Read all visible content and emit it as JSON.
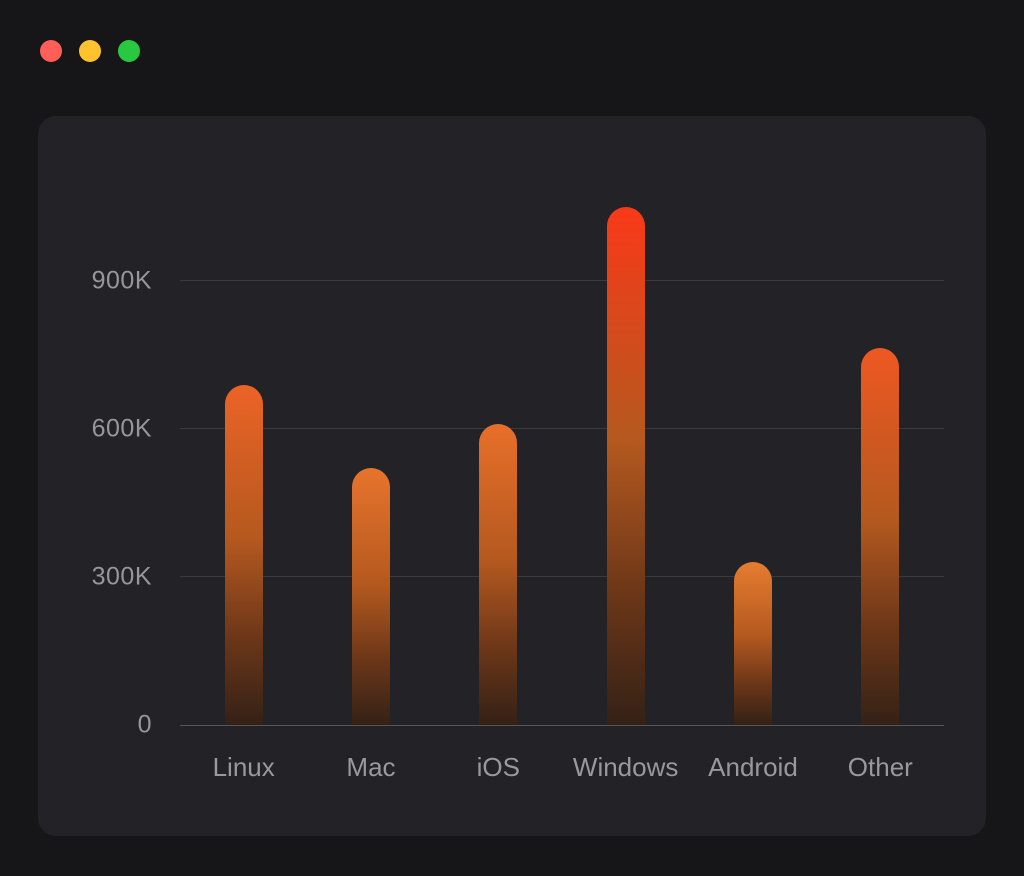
{
  "window": {
    "traffic_lights": [
      {
        "name": "close",
        "color": "#ff5f57"
      },
      {
        "name": "minimize",
        "color": "#fdc22e"
      },
      {
        "name": "zoom",
        "color": "#28c840"
      }
    ]
  },
  "chart_data": {
    "type": "bar",
    "title": "",
    "categories": [
      "Linux",
      "Mac",
      "iOS",
      "Windows",
      "Android",
      "Other"
    ],
    "values": [
      690000,
      520000,
      610000,
      1050000,
      330000,
      765000
    ],
    "y_ticks": [
      {
        "label": "0",
        "value": 0
      },
      {
        "label": "300K",
        "value": 300000
      },
      {
        "label": "600K",
        "value": 600000
      },
      {
        "label": "900K",
        "value": 900000
      }
    ],
    "ylim": [
      0,
      1095000
    ],
    "grid": true,
    "legend": false,
    "xlabel": "",
    "ylabel": "",
    "bar_color_ramp": [
      {
        "t": 0.0,
        "color": "#e18a35"
      },
      {
        "t": 0.55,
        "color": "#e8702a"
      },
      {
        "t": 0.75,
        "color": "#f1501f"
      },
      {
        "t": 1.0,
        "color": "#fb3517"
      }
    ],
    "bar_gradient_lower": [
      "#b5591f",
      "#6b3618",
      "#342116"
    ]
  },
  "style": {
    "page_bg": "#161618",
    "panel_bg": "#232327",
    "grid_color": "#3a3a3e",
    "axis_color": "#55555a",
    "tick_color": "#96969b",
    "label_color": "#98989d"
  }
}
